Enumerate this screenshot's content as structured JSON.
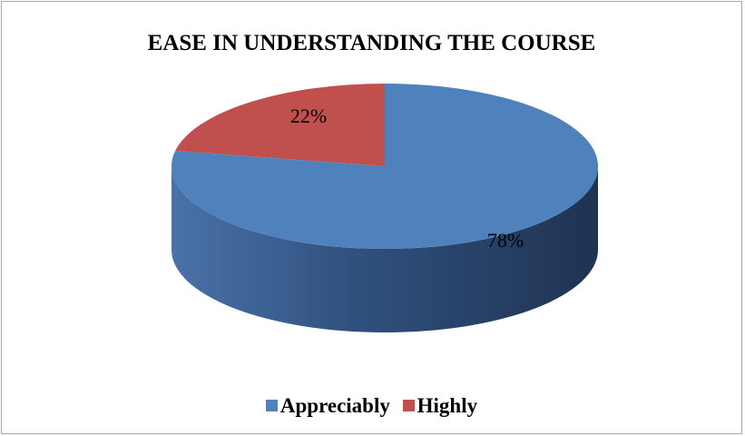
{
  "chart_data": {
    "type": "pie",
    "title": "EASE IN UNDERSTANDING THE COURSE",
    "categories": [
      "Appreciably",
      "Highly"
    ],
    "values": [
      78,
      22
    ],
    "data_labels": [
      "78%",
      "22%"
    ],
    "colors": [
      "#4F81BD",
      "#C0504D"
    ],
    "legend_position": "bottom",
    "style": "3d"
  }
}
